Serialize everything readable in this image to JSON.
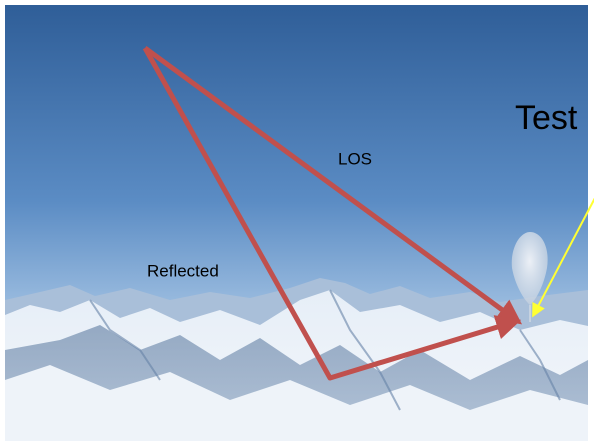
{
  "labels": {
    "test": "Test",
    "los": "LOS",
    "reflected": "Reflected"
  }
}
